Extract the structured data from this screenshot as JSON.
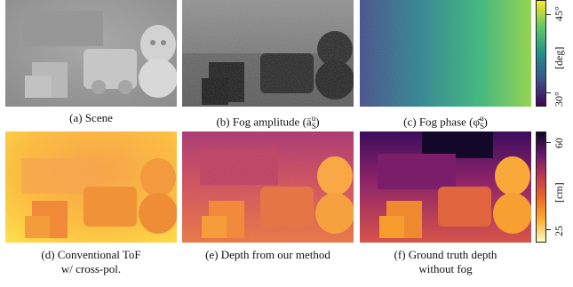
{
  "figure": {
    "top_row": {
      "captions": {
        "a": "(a) Scene",
        "b": "(b) Fog amplitude (ā",
        "b_sup": "u",
        "b_sub": "S",
        "b_end": ")",
        "c": "(c) Fog phase (φ̄",
        "c_sup": "u",
        "c_sub": "S",
        "c_end": ")"
      },
      "colorbar": {
        "unit": "[deg]",
        "max_label": "45°",
        "min_label": "30°",
        "colormap": "viridis",
        "colors": [
          "#440154",
          "#3b528b",
          "#21918c",
          "#5ec962",
          "#fde725"
        ]
      }
    },
    "bottom_row": {
      "captions": {
        "d_line1": "(d) Conventional ToF",
        "d_line2": "w/ cross-pol.",
        "e": "(e) Depth from our method",
        "f_line1": "(f) Ground truth depth",
        "f_line2": "without fog"
      },
      "colorbar": {
        "unit": "[cm]",
        "max_label": "60",
        "min_label": "25",
        "colormap": "plasma",
        "colors": [
          "#fcfdbf",
          "#fdae32",
          "#ed6925",
          "#bc3754",
          "#6a176e",
          "#0d0829"
        ]
      }
    }
  }
}
